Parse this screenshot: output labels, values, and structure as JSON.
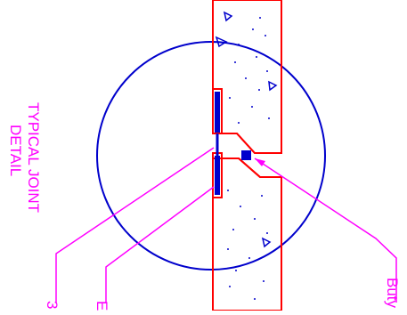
{
  "title": {
    "line1": "TYPICAL JOINT",
    "line2": "DETAIL"
  },
  "callouts": {
    "left": "3",
    "middle": "E",
    "right": "Buty"
  },
  "colors": {
    "circle": "#0000cc",
    "wall": "#ff0000",
    "leader": "#ff00ff",
    "text": "#ff00ff",
    "strip": "#0000cc",
    "aggregate": "#0000cc"
  }
}
